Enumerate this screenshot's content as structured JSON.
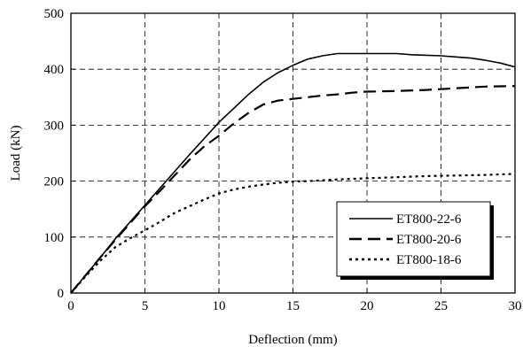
{
  "chart_data": {
    "type": "line",
    "title": "",
    "xlabel": "Deflection (mm)",
    "ylabel": "Load (kN)",
    "xlim": [
      0,
      30
    ],
    "ylim": [
      0,
      500
    ],
    "xticks": [
      "0",
      "5",
      "10",
      "15",
      "20",
      "25",
      "30"
    ],
    "yticks": [
      "0",
      "100",
      "200",
      "300",
      "400",
      "500"
    ],
    "grid": true,
    "legend_position": "bottom-right",
    "series": [
      {
        "name": "ET800-22-6",
        "style": "solid",
        "color": "#000000",
        "x": [
          0,
          1,
          2,
          3,
          4,
          5,
          6,
          7,
          8,
          9,
          10,
          11,
          12,
          13,
          14,
          15,
          16,
          17,
          18,
          19,
          20,
          21,
          22,
          23,
          24,
          25,
          26,
          27,
          28,
          29,
          30
        ],
        "y": [
          0,
          32,
          64,
          97,
          127,
          157,
          187,
          217,
          247,
          276,
          305,
          330,
          355,
          377,
          394,
          407,
          418,
          424,
          428,
          428,
          428,
          428,
          428,
          426,
          425,
          424,
          422,
          420,
          416,
          411,
          404
        ]
      },
      {
        "name": "ET800-20-6",
        "style": "dashed",
        "color": "#000000",
        "x": [
          0,
          1,
          2,
          3,
          4,
          5,
          6,
          7,
          8,
          9,
          10,
          11,
          12,
          13,
          14,
          15,
          16,
          17,
          18,
          19,
          20,
          22,
          24,
          26,
          28,
          30
        ],
        "y": [
          0,
          32,
          64,
          95,
          125,
          155,
          182,
          210,
          238,
          262,
          281,
          303,
          322,
          337,
          344,
          347,
          350,
          353,
          355,
          358,
          360,
          361,
          363,
          366,
          369,
          370
        ]
      },
      {
        "name": "ET800-18-6",
        "style": "dotted",
        "color": "#000000",
        "x": [
          0,
          1,
          2,
          3,
          4,
          5,
          6,
          7,
          8,
          9,
          10,
          11,
          12,
          13,
          14,
          15,
          16,
          18,
          20,
          22,
          24,
          26,
          28,
          30
        ],
        "y": [
          0,
          30,
          58,
          82,
          98,
          112,
          127,
          143,
          155,
          167,
          178,
          185,
          190,
          194,
          197,
          199,
          200,
          203,
          205,
          207,
          209,
          210,
          211,
          213
        ]
      }
    ]
  }
}
